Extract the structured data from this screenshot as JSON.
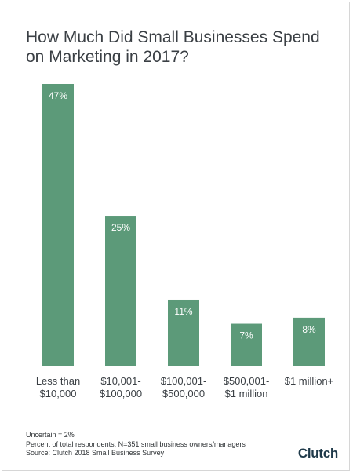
{
  "title_line1": "How Much Did Small Businesses Spend",
  "title_line2": "on Marketing in 2017?",
  "footer": {
    "line1": "Uncertain = 2%",
    "line2": "Percent of total respondents, N=351 small business owners/managers",
    "line3": "Source: Clutch 2018 Small Business Survey"
  },
  "logo": "Clutch",
  "chart_data": {
    "type": "bar",
    "title": "How Much Did Small Businesses Spend on Marketing in 2017?",
    "categories": [
      "Less than\n$10,000",
      "$10,001-\n$100,000",
      "$100,001-\n$500,000",
      "$500,001-\n$1 million",
      "$1 million+"
    ],
    "values": [
      47,
      25,
      11,
      7,
      8
    ],
    "value_labels": [
      "47%",
      "25%",
      "11%",
      "7%",
      "8%"
    ],
    "ylim": [
      0,
      47
    ],
    "grid": false,
    "bar_color": "#5c9a79",
    "label_color": "#ffffff",
    "baseline_color": "#c8c8c8"
  }
}
